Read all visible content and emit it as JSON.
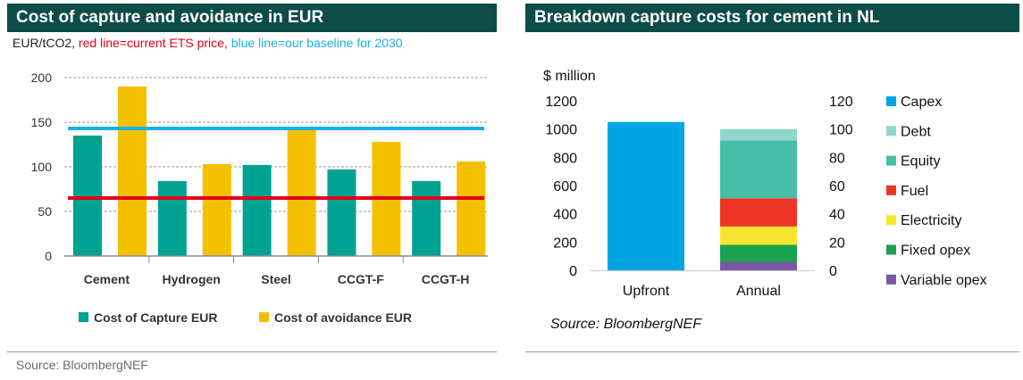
{
  "left_panel": {
    "title": "Cost of capture and avoidance in EUR",
    "subtitle": {
      "unit": "EUR/tCO2,",
      "red_note": "red line=current ETS price,",
      "blue_note": "blue line=our baseline for 2030"
    },
    "source": "Source: BloombergNEF"
  },
  "right_panel": {
    "title": "Breakdown capture costs for cement in NL",
    "source": "Source: BloombergNEF"
  },
  "colors": {
    "title_bg": "#0e4c48",
    "teal": "#00a291",
    "gold": "#f5c000",
    "red_line": "#e2001a",
    "blue_line": "#1ab0e8",
    "capex": "#00a6e3",
    "debt": "#8fd6cb",
    "equity": "#47bfa8",
    "fuel": "#ee3524",
    "electricity": "#f7e531",
    "fixed_opex": "#1aa24f",
    "variable_opex": "#7b58a6"
  },
  "chart_data": [
    {
      "type": "bar",
      "title": "Cost of capture and avoidance in EUR",
      "ylabel": "EUR/tCO2",
      "ylim": [
        0,
        200
      ],
      "yticks": [
        0,
        50,
        100,
        150,
        200
      ],
      "categories": [
        "Cement",
        "Hydrogen",
        "Steel",
        "CCGT-F",
        "CCGT-H"
      ],
      "series": [
        {
          "name": "Cost of Capture EUR",
          "color": "#00a291",
          "values": [
            135,
            84,
            102,
            97,
            84
          ]
        },
        {
          "name": "Cost of avoidance EUR",
          "color": "#f5c000",
          "values": [
            190,
            103,
            142,
            128,
            106
          ]
        }
      ],
      "reference_lines": [
        {
          "name": "current ETS price",
          "color": "#e2001a",
          "value": 65
        },
        {
          "name": "our baseline for 2030",
          "color": "#1ab0e8",
          "value": 143
        }
      ],
      "legend_position": "bottom",
      "grid": true
    },
    {
      "type": "bar",
      "stacked": true,
      "title": "Breakdown capture costs for cement in NL",
      "ylabel": "$ million",
      "categories": [
        "Upfront",
        "Annual"
      ],
      "left_axis": {
        "ylim": [
          0,
          1200
        ],
        "ticks": [
          0,
          200,
          400,
          600,
          800,
          1000,
          1200
        ]
      },
      "right_axis": {
        "ylim": [
          0,
          120
        ],
        "ticks": [
          0,
          20,
          40,
          60,
          80,
          100,
          120
        ]
      },
      "series": [
        {
          "name": "Capex",
          "color": "#00a6e3",
          "axis": "left",
          "values": [
            1050,
            0
          ]
        },
        {
          "name": "Variable opex",
          "color": "#7b58a6",
          "axis": "right",
          "values": [
            0,
            6
          ]
        },
        {
          "name": "Fixed opex",
          "color": "#1aa24f",
          "axis": "right",
          "values": [
            0,
            12
          ]
        },
        {
          "name": "Electricity",
          "color": "#f7e531",
          "axis": "right",
          "values": [
            0,
            13
          ]
        },
        {
          "name": "Fuel",
          "color": "#ee3524",
          "axis": "right",
          "values": [
            0,
            20
          ]
        },
        {
          "name": "Equity",
          "color": "#47bfa8",
          "axis": "right",
          "values": [
            0,
            41
          ]
        },
        {
          "name": "Debt",
          "color": "#8fd6cb",
          "axis": "right",
          "values": [
            0,
            8
          ]
        }
      ],
      "legend_order": [
        "Capex",
        "Debt",
        "Equity",
        "Fuel",
        "Electricity",
        "Fixed opex",
        "Variable opex"
      ],
      "legend_position": "right",
      "grid": false
    }
  ]
}
